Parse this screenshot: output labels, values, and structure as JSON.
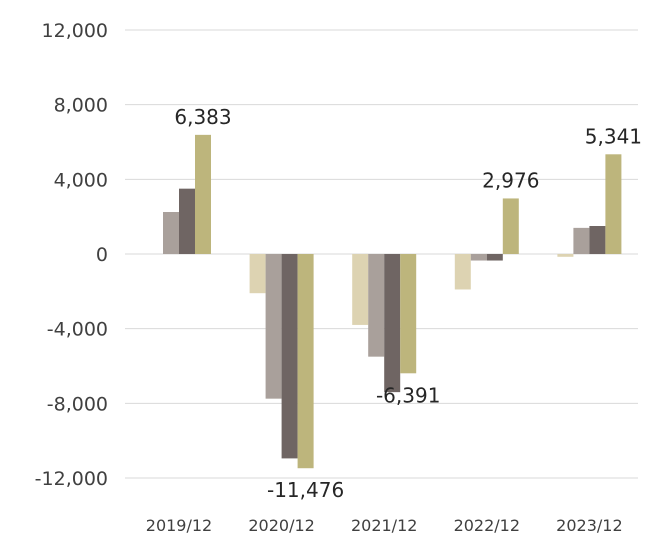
{
  "chart_data": {
    "type": "bar",
    "categories": [
      "2019/12",
      "2020/12",
      "2021/12",
      "2022/12",
      "2023/12"
    ],
    "series": [
      {
        "color": "#ddd3b2",
        "values": [
          0,
          -2100,
          -3800,
          -1900,
          -150
        ]
      },
      {
        "color": "#a9a09b",
        "values": [
          2250,
          -7750,
          -5500,
          -350,
          1400
        ]
      },
      {
        "color": "#6f6563",
        "values": [
          3500,
          -10950,
          -7400,
          -350,
          1500
        ]
      },
      {
        "color": "#bdb57c",
        "values": [
          6383,
          -11476,
          -6391,
          2976,
          5341
        ]
      }
    ],
    "data_labels": [
      {
        "series": 3,
        "index": 0,
        "text": "6,383"
      },
      {
        "series": 3,
        "index": 1,
        "text": "-11,476"
      },
      {
        "series": 3,
        "index": 2,
        "text": "-6,391"
      },
      {
        "series": 3,
        "index": 3,
        "text": "2,976"
      },
      {
        "series": 3,
        "index": 4,
        "text": "5,341"
      }
    ],
    "yticks": [
      12000,
      8000,
      4000,
      0,
      -4000,
      -8000,
      -12000
    ],
    "ytick_labels": [
      "12,000",
      "8,000",
      "4,000",
      "0",
      "-4,000",
      "-8,000",
      "-12,000"
    ],
    "ylim": [
      -12000,
      12000
    ],
    "grid": true,
    "legend": "none"
  }
}
